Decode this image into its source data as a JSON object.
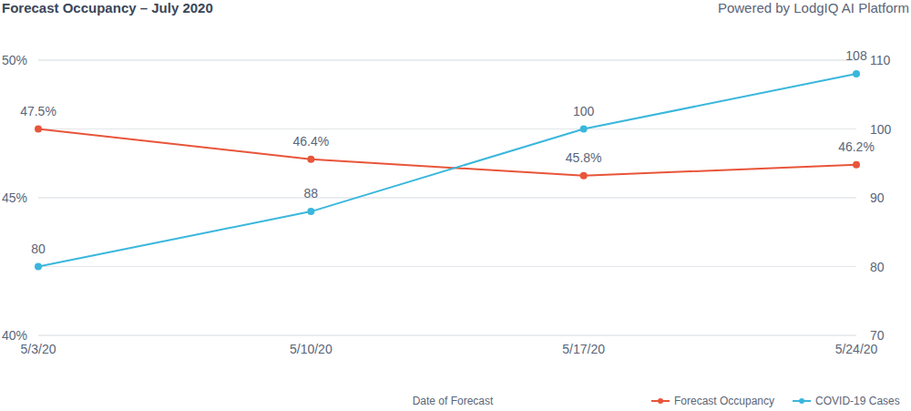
{
  "chart_data": {
    "type": "line",
    "title": "Forecast Occupancy – July 2020",
    "subtitle": "Powered by LodgIQ AI Platform",
    "xlabel": "Date of Forecast",
    "categories": [
      "5/3/20",
      "5/10/20",
      "5/17/20",
      "5/24/20"
    ],
    "series": [
      {
        "name": "Forecast Occupancy",
        "color": "#e8553a",
        "values": [
          47.5,
          46.4,
          45.8,
          46.2
        ],
        "value_labels": [
          "47.5%",
          "46.4%",
          "45.8%",
          "46.2%"
        ],
        "marker": "circle"
      },
      {
        "name": "COVID-19 Cases",
        "color": "#3ab7dc",
        "values": [
          80,
          88,
          100,
          108
        ],
        "axis": "y2",
        "marker": "circle"
      }
    ],
    "ylim": [
      40,
      50
    ],
    "yticks": [
      {
        "value": 40,
        "label": "40%"
      },
      {
        "value": 45,
        "label": "45%"
      },
      {
        "value": 50,
        "label": "50%"
      }
    ],
    "y2lim": [
      70,
      110
    ],
    "y2ticks": [
      70,
      80,
      90,
      100,
      110
    ],
    "grid": true,
    "legend": "lower right",
    "data_labels": true
  }
}
